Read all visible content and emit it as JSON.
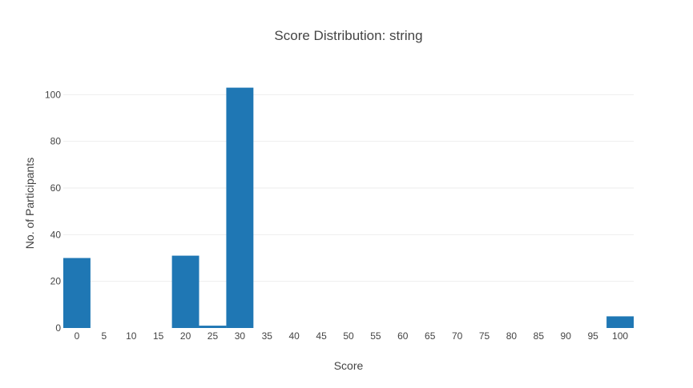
{
  "chart_data": {
    "type": "bar",
    "title": "Score Distribution: string",
    "xlabel": "Score",
    "ylabel": "No. of Participants",
    "categories": [
      "0",
      "5",
      "10",
      "15",
      "20",
      "25",
      "30",
      "35",
      "40",
      "45",
      "50",
      "55",
      "60",
      "65",
      "70",
      "75",
      "80",
      "85",
      "90",
      "95",
      "100"
    ],
    "values": [
      30,
      0,
      0,
      0,
      31,
      1,
      103,
      0,
      0,
      0,
      0,
      0,
      0,
      0,
      0,
      0,
      0,
      0,
      0,
      0,
      5
    ],
    "ylim": [
      0,
      108
    ],
    "yticks": [
      0,
      20,
      40,
      60,
      80,
      100
    ],
    "grid": true,
    "legend": "none",
    "colors": {
      "bar": "#1f77b4",
      "grid": "#eeeeee",
      "text": "#444444"
    }
  }
}
